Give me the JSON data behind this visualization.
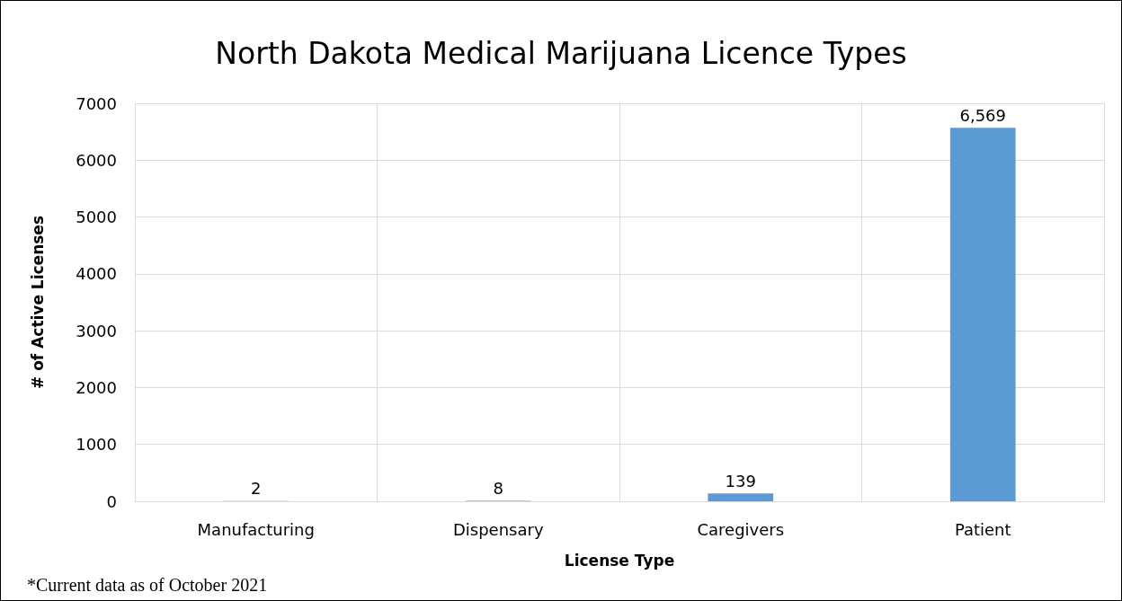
{
  "chart_data": {
    "type": "bar",
    "title": "North Dakota Medical Marijuana Licence Types",
    "xlabel": "License Type",
    "ylabel": "# of Active Licenses",
    "categories": [
      "Manufacturing",
      "Dispensary",
      "Caregivers",
      "Patient"
    ],
    "values": [
      2,
      8,
      139,
      6569
    ],
    "color": "#5b9bd5",
    "value_labels": [
      "2",
      "8",
      "139",
      "6,569"
    ],
    "ylim": [
      0,
      7000
    ],
    "yticks": [
      0,
      1000,
      2000,
      3000,
      4000,
      5000,
      6000,
      7000
    ],
    "grid": true,
    "annotations": [
      "*Current data as of October 2021"
    ]
  }
}
